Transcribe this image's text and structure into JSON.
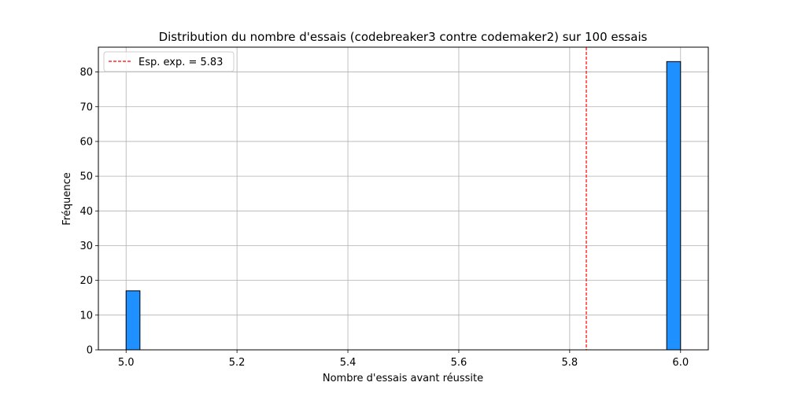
{
  "chart_data": {
    "type": "bar",
    "title": "Distribution du nombre d'essais (codebreaker3 contre codemaker2) sur 100 essais",
    "xlabel": "Nombre d'essais avant réussite",
    "ylabel": "Fréquence",
    "xlim": [
      4.95,
      6.05
    ],
    "ylim": [
      0,
      87.15
    ],
    "x_ticks": [
      "5.0",
      "5.2",
      "5.4",
      "5.6",
      "5.8",
      "6.0"
    ],
    "y_ticks": [
      "0",
      "10",
      "20",
      "30",
      "40",
      "50",
      "60",
      "70",
      "80"
    ],
    "grid": true,
    "bins": [
      {
        "start": 5.0,
        "end": 5.025,
        "value": 17
      },
      {
        "start": 5.975,
        "end": 6.0,
        "value": 83
      }
    ],
    "bar_color": "#1e90ff",
    "bar_edge_color": "#000000",
    "reference_line": {
      "x": 5.83,
      "label": "Esp. exp. = 5.83",
      "color": "#ff0000",
      "style": "dashed"
    },
    "legend": {
      "position": "top-left",
      "entries": [
        "Esp. exp. = 5.83"
      ]
    }
  }
}
